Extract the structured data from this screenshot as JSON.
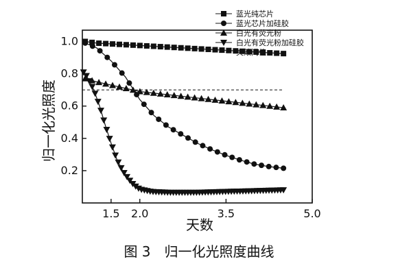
{
  "caption": "图 3　归一化光照度曲线",
  "chart_data": {
    "type": "line",
    "title": "",
    "xlabel": "天数",
    "ylabel": "归一化光照度",
    "xlim": [
      1.0,
      5.0
    ],
    "ylim": [
      0.0,
      1.07
    ],
    "xticks": [
      1.5,
      2.0,
      3.5,
      5.0
    ],
    "xtick_labels": [
      "1.5",
      "2.0",
      "3.5",
      "5.0"
    ],
    "yticks": [
      0.2,
      0.4,
      0.6,
      0.8,
      1.0
    ],
    "ytick_labels": [
      "0.2",
      "0.4",
      "0.6",
      "0.8",
      "1.0"
    ],
    "grid": false,
    "legend_position": "top-right",
    "series": [
      {
        "name": "蓝光纯芯片",
        "marker": "square",
        "x": [
          1.05,
          1.25,
          1.5,
          1.75,
          2.0,
          2.25,
          2.5,
          2.75,
          3.0,
          3.25,
          3.5,
          3.75,
          4.0,
          4.25,
          4.5
        ],
        "y": [
          1.0,
          0.99,
          0.985,
          0.98,
          0.975,
          0.97,
          0.965,
          0.96,
          0.955,
          0.95,
          0.945,
          0.94,
          0.935,
          0.93,
          0.925
        ]
      },
      {
        "name": "蓝光芯片加硅胶",
        "marker": "circle",
        "x": [
          1.05,
          1.25,
          1.5,
          1.75,
          2.0,
          2.25,
          2.5,
          2.75,
          3.0,
          3.25,
          3.5,
          3.75,
          4.0,
          4.25,
          4.5
        ],
        "y": [
          0.99,
          0.96,
          0.88,
          0.78,
          0.64,
          0.54,
          0.47,
          0.42,
          0.37,
          0.33,
          0.295,
          0.265,
          0.24,
          0.225,
          0.215
        ]
      },
      {
        "name": "白光有荧光粉",
        "marker": "triangle-up",
        "x": [
          1.05,
          1.25,
          1.5,
          1.75,
          2.0,
          2.25,
          2.5,
          2.75,
          3.0,
          3.25,
          3.5,
          3.75,
          4.0,
          4.25,
          4.5
        ],
        "y": [
          0.77,
          0.75,
          0.73,
          0.71,
          0.69,
          0.68,
          0.67,
          0.66,
          0.65,
          0.64,
          0.63,
          0.62,
          0.61,
          0.6,
          0.59
        ]
      },
      {
        "name": "白光有荧光粉加硅胶",
        "marker": "triangle-down",
        "x": [
          1.02,
          1.05,
          1.1,
          1.2,
          1.3,
          1.4,
          1.5,
          1.6,
          1.7,
          1.8,
          1.9,
          2.0,
          2.2,
          2.5,
          3.0,
          3.5,
          4.0,
          4.5
        ],
        "y": [
          0.81,
          0.8,
          0.77,
          0.7,
          0.6,
          0.48,
          0.37,
          0.27,
          0.2,
          0.15,
          0.11,
          0.085,
          0.07,
          0.065,
          0.065,
          0.07,
          0.075,
          0.08
        ]
      },
      {
        "name": "失效阈值",
        "marker": "none",
        "dashed": true,
        "x": [
          1.0,
          4.5
        ],
        "y": [
          0.7,
          0.7
        ]
      }
    ]
  }
}
